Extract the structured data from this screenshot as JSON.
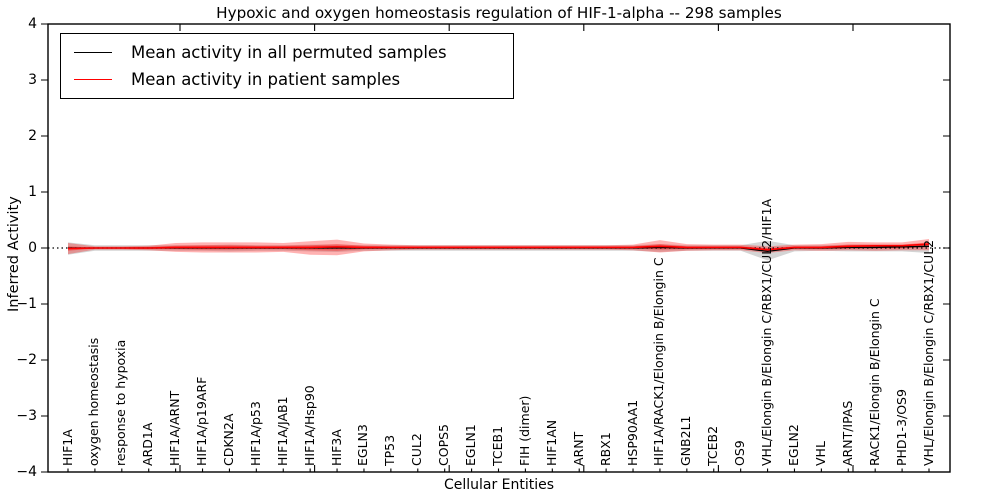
{
  "title": "Hypoxic and oxygen homeostasis regulation of HIF-1-alpha -- 298 samples",
  "axes": {
    "ylabel": "Inferred Activity",
    "xlabel": "Cellular Entities",
    "ytick_labels": [
      "4",
      "3",
      "2",
      "1",
      "0",
      "−1",
      "−2",
      "−3",
      "−4"
    ],
    "ytick_values": [
      4,
      3,
      2,
      1,
      0,
      -1,
      -2,
      -3,
      -4
    ]
  },
  "legend": {
    "entries": [
      {
        "label": "Mean activity in all permuted samples",
        "color": "#000000"
      },
      {
        "label": "Mean activity in patient samples",
        "color": "#ff0000"
      }
    ]
  },
  "chart_data": {
    "type": "line",
    "title": "Hypoxic and oxygen homeostasis regulation of HIF-1-alpha -- 298 samples",
    "xlabel": "Cellular Entities",
    "ylabel": "Inferred Activity",
    "ylim": [
      -4,
      4
    ],
    "grid": false,
    "legend_position": "upper left",
    "zero_line": true,
    "categories": [
      "HIF1A",
      "oxygen homeostasis",
      "response to hypoxia",
      "ARD1A",
      "HIF1A/ARNT",
      "HIF1A/p19ARF",
      "CDKN2A",
      "HIF1A/p53",
      "HIF1A/JAB1",
      "HIF1A/Hsp90",
      "HIF3A",
      "EGLN3",
      "TP53",
      "CUL2",
      "COPS5",
      "EGLN1",
      "TCEB1",
      "FIH (dimer)",
      "HIF1AN",
      "ARNT",
      "RBX1",
      "HSP90AA1",
      "HIF1A/RACK1/Elongin B/Elongin C",
      "GNB2L1",
      "TCEB2",
      "OS9",
      "VHL/Elongin B/Elongin C/RBX1/CUL2/HIF1A",
      "EGLN2",
      "VHL",
      "ARNT/IPAS",
      "RACK1/Elongin B/Elongin C",
      "PHD1-3/OS9",
      "VHL/Elongin B/Elongin C/RBX1/CUL2"
    ],
    "series": [
      {
        "name": "Mean activity in all permuted samples",
        "color": "#000000",
        "values": [
          0,
          0,
          0,
          0,
          0,
          0,
          0,
          0,
          0,
          0,
          0,
          0,
          0,
          0,
          0,
          0,
          0,
          0,
          0,
          0,
          0,
          0,
          0.01,
          0,
          0,
          0,
          -0.06,
          0,
          0,
          0.01,
          0.01,
          0.02,
          0.03
        ]
      },
      {
        "name": "Mean activity in patient samples",
        "color": "#ff0000",
        "values": [
          -0.01,
          0,
          0,
          0,
          0.01,
          0.01,
          0.01,
          0.01,
          0.01,
          0.01,
          0.02,
          0.01,
          0.01,
          0.01,
          0.01,
          0.01,
          0.01,
          0.01,
          0.01,
          0.01,
          0.01,
          0.01,
          0.03,
          0.01,
          0.01,
          0.01,
          -0.03,
          0.01,
          0.01,
          0.03,
          0.04,
          0.04,
          0.07
        ]
      }
    ],
    "bands": [
      {
        "name": "permuted-samples-spread",
        "color": "#787878",
        "opacity": 0.32,
        "upper": [
          0.1,
          0.05,
          0.05,
          0.05,
          0.05,
          0.05,
          0.06,
          0.05,
          0.05,
          0.06,
          0.06,
          0.05,
          0.05,
          0.05,
          0.05,
          0.05,
          0.05,
          0.05,
          0.05,
          0.05,
          0.05,
          0.05,
          0.07,
          0.05,
          0.05,
          0.05,
          0.13,
          0.05,
          0.05,
          0.06,
          0.06,
          0.06,
          0.08
        ],
        "lower": [
          -0.12,
          -0.05,
          -0.05,
          -0.05,
          -0.05,
          -0.05,
          -0.06,
          -0.05,
          -0.05,
          -0.06,
          -0.07,
          -0.05,
          -0.05,
          -0.05,
          -0.05,
          -0.05,
          -0.05,
          -0.05,
          -0.05,
          -0.05,
          -0.05,
          -0.05,
          -0.07,
          -0.05,
          -0.05,
          -0.05,
          -0.22,
          -0.06,
          -0.05,
          -0.06,
          -0.06,
          -0.06,
          -0.09
        ]
      },
      {
        "name": "patient-samples-spread-outer",
        "color": "#ff0000",
        "opacity": 0.3,
        "upper": [
          0.09,
          0.03,
          0.03,
          0.04,
          0.09,
          0.1,
          0.1,
          0.1,
          0.09,
          0.12,
          0.15,
          0.08,
          0.06,
          0.05,
          0.05,
          0.05,
          0.05,
          0.05,
          0.05,
          0.05,
          0.05,
          0.06,
          0.14,
          0.07,
          0.06,
          0.06,
          0.03,
          0.06,
          0.07,
          0.11,
          0.1,
          0.1,
          0.16
        ],
        "lower": [
          -0.11,
          -0.03,
          -0.03,
          -0.04,
          -0.07,
          -0.08,
          -0.08,
          -0.08,
          -0.07,
          -0.12,
          -0.13,
          -0.06,
          -0.04,
          -0.03,
          -0.03,
          -0.03,
          -0.03,
          -0.03,
          -0.03,
          -0.03,
          -0.03,
          -0.04,
          -0.08,
          -0.05,
          -0.04,
          -0.04,
          -0.09,
          -0.04,
          -0.05,
          -0.04,
          -0.05,
          -0.04,
          -0.04
        ]
      },
      {
        "name": "patient-samples-spread-inner",
        "color": "#ff0000",
        "opacity": 0.35,
        "upper": [
          0.03,
          0.01,
          0.01,
          0.02,
          0.04,
          0.05,
          0.05,
          0.04,
          0.04,
          0.05,
          0.07,
          0.04,
          0.03,
          0.03,
          0.03,
          0.03,
          0.03,
          0.03,
          0.03,
          0.03,
          0.03,
          0.03,
          0.07,
          0.03,
          0.03,
          0.03,
          0.0,
          0.03,
          0.03,
          0.06,
          0.06,
          0.06,
          0.1
        ],
        "lower": [
          -0.05,
          -0.01,
          -0.01,
          -0.02,
          -0.02,
          -0.03,
          -0.03,
          -0.02,
          -0.02,
          -0.04,
          -0.05,
          -0.02,
          -0.01,
          -0.01,
          -0.01,
          -0.01,
          -0.01,
          -0.01,
          -0.01,
          -0.01,
          -0.01,
          -0.01,
          -0.03,
          -0.02,
          -0.01,
          -0.01,
          -0.06,
          -0.01,
          -0.02,
          -0.01,
          -0.01,
          -0.01,
          0.02
        ]
      }
    ]
  }
}
